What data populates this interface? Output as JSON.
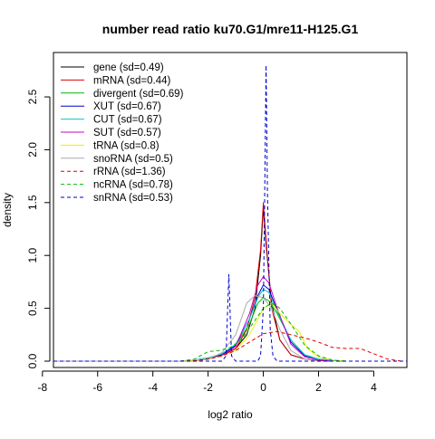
{
  "chart_data": {
    "type": "line",
    "title": "number read ratio ku70.G1/mre11-H125.G1",
    "xlabel": "log2 ratio",
    "ylabel": "density",
    "xlim": [
      -7.6,
      5.2
    ],
    "ylim": [
      -0.06,
      2.92
    ],
    "x_ticks": [
      -8,
      -6,
      -4,
      -2,
      0,
      2,
      4
    ],
    "y_ticks": [
      0.0,
      0.5,
      1.0,
      1.5,
      2.0,
      2.5
    ],
    "x_tick_labels": [
      "-8",
      "-6",
      "-4",
      "-2",
      "0",
      "2",
      "4"
    ],
    "y_tick_labels": [
      "0.0",
      "0.5",
      "1.0",
      "1.5",
      "2.0",
      "2.5"
    ],
    "grid": false,
    "legend_position": "top-left",
    "series": [
      {
        "name": "gene (sd=0.49)",
        "color": "#000000",
        "dash": "solid",
        "points": [
          [
            -7.6,
            0
          ],
          [
            -3,
            0
          ],
          [
            -2.5,
            0.01
          ],
          [
            -2,
            0.02
          ],
          [
            -1.5,
            0.05
          ],
          [
            -1,
            0.12
          ],
          [
            -0.6,
            0.25
          ],
          [
            -0.3,
            0.5
          ],
          [
            -0.1,
            1.0
          ],
          [
            0,
            1.45
          ],
          [
            0.1,
            1.1
          ],
          [
            0.3,
            0.55
          ],
          [
            0.6,
            0.2
          ],
          [
            1,
            0.06
          ],
          [
            1.5,
            0.02
          ],
          [
            2,
            0.005
          ],
          [
            2.5,
            0
          ]
        ]
      },
      {
        "name": "mRNA (sd=0.44)",
        "color": "#dd0000",
        "dash": "solid",
        "points": [
          [
            -7.6,
            0
          ],
          [
            -2.5,
            0
          ],
          [
            -2,
            0.02
          ],
          [
            -1.5,
            0.05
          ],
          [
            -1,
            0.12
          ],
          [
            -0.6,
            0.3
          ],
          [
            -0.3,
            0.6
          ],
          [
            -0.1,
            1.05
          ],
          [
            0,
            1.5
          ],
          [
            0.1,
            1.15
          ],
          [
            0.3,
            0.5
          ],
          [
            0.6,
            0.2
          ],
          [
            1,
            0.06
          ],
          [
            1.5,
            0.02
          ],
          [
            2,
            0.005
          ],
          [
            2.5,
            0
          ]
        ]
      },
      {
        "name": "divergent (sd=0.69)",
        "color": "#00bb00",
        "dash": "solid",
        "points": [
          [
            -7.6,
            0
          ],
          [
            -3,
            0
          ],
          [
            -2.5,
            0.01
          ],
          [
            -2,
            0.03
          ],
          [
            -1.5,
            0.07
          ],
          [
            -1,
            0.15
          ],
          [
            -0.5,
            0.35
          ],
          [
            -0.2,
            0.55
          ],
          [
            0,
            0.6
          ],
          [
            0.2,
            0.57
          ],
          [
            0.5,
            0.45
          ],
          [
            1,
            0.2
          ],
          [
            1.5,
            0.06
          ],
          [
            2,
            0.02
          ],
          [
            2.5,
            0.005
          ],
          [
            3,
            0
          ]
        ]
      },
      {
        "name": "XUT (sd=0.67)",
        "color": "#0000cc",
        "dash": "solid",
        "points": [
          [
            -7.6,
            0
          ],
          [
            -3,
            0
          ],
          [
            -2.5,
            0.01
          ],
          [
            -2,
            0.03
          ],
          [
            -1.5,
            0.06
          ],
          [
            -1,
            0.15
          ],
          [
            -0.5,
            0.4
          ],
          [
            -0.2,
            0.62
          ],
          [
            0,
            0.72
          ],
          [
            0.2,
            0.68
          ],
          [
            0.5,
            0.48
          ],
          [
            1,
            0.18
          ],
          [
            1.5,
            0.05
          ],
          [
            2,
            0.02
          ],
          [
            2.5,
            0.005
          ],
          [
            3,
            0
          ]
        ]
      },
      {
        "name": "CUT (sd=0.67)",
        "color": "#00cccc",
        "dash": "solid",
        "points": [
          [
            -7.6,
            0
          ],
          [
            -3,
            0
          ],
          [
            -2.5,
            0.01
          ],
          [
            -2,
            0.03
          ],
          [
            -1.5,
            0.07
          ],
          [
            -1,
            0.16
          ],
          [
            -0.5,
            0.4
          ],
          [
            -0.2,
            0.6
          ],
          [
            0,
            0.68
          ],
          [
            0.2,
            0.65
          ],
          [
            0.5,
            0.47
          ],
          [
            1,
            0.2
          ],
          [
            1.5,
            0.06
          ],
          [
            2,
            0.02
          ],
          [
            2.5,
            0.005
          ],
          [
            3,
            0
          ]
        ]
      },
      {
        "name": "SUT (sd=0.57)",
        "color": "#cc00cc",
        "dash": "solid",
        "points": [
          [
            -7.6,
            0
          ],
          [
            -3,
            0
          ],
          [
            -2.5,
            0.01
          ],
          [
            -2,
            0.02
          ],
          [
            -1.5,
            0.05
          ],
          [
            -1,
            0.14
          ],
          [
            -0.5,
            0.45
          ],
          [
            -0.2,
            0.72
          ],
          [
            0,
            0.8
          ],
          [
            0.2,
            0.74
          ],
          [
            0.5,
            0.5
          ],
          [
            1,
            0.16
          ],
          [
            1.5,
            0.04
          ],
          [
            2,
            0.01
          ],
          [
            2.5,
            0
          ]
        ]
      },
      {
        "name": "tRNA (sd=0.8)",
        "color": "#eeee00",
        "dash": "solid",
        "points": [
          [
            -7.6,
            0
          ],
          [
            -3,
            0
          ],
          [
            -2.5,
            0.01
          ],
          [
            -2,
            0.02
          ],
          [
            -1.5,
            0.05
          ],
          [
            -1,
            0.1
          ],
          [
            -0.5,
            0.25
          ],
          [
            0,
            0.5
          ],
          [
            0.3,
            0.55
          ],
          [
            0.6,
            0.45
          ],
          [
            1,
            0.35
          ],
          [
            1.3,
            0.28
          ],
          [
            1.6,
            0.12
          ],
          [
            2,
            0.04
          ],
          [
            2.5,
            0.01
          ],
          [
            3,
            0
          ]
        ]
      },
      {
        "name": "snoRNA (sd=0.5)",
        "color": "#aaaaaa",
        "dash": "solid",
        "points": [
          [
            -7.6,
            0
          ],
          [
            -2.5,
            0
          ],
          [
            -2,
            0.02
          ],
          [
            -1.5,
            0.08
          ],
          [
            -1,
            0.25
          ],
          [
            -0.6,
            0.55
          ],
          [
            -0.3,
            0.62
          ],
          [
            0,
            0.6
          ],
          [
            0.3,
            0.5
          ],
          [
            0.6,
            0.3
          ],
          [
            1,
            0.1
          ],
          [
            1.5,
            0.02
          ],
          [
            2,
            0
          ]
        ]
      },
      {
        "name": "rRNA (sd=1.36)",
        "color": "#dd0000",
        "dash": "4,3",
        "points": [
          [
            -7.6,
            0
          ],
          [
            -3,
            0
          ],
          [
            -2.5,
            0.005
          ],
          [
            -2,
            0.02
          ],
          [
            -1.5,
            0.05
          ],
          [
            -1,
            0.1
          ],
          [
            -0.5,
            0.18
          ],
          [
            0,
            0.26
          ],
          [
            0.5,
            0.28
          ],
          [
            1,
            0.25
          ],
          [
            1.5,
            0.22
          ],
          [
            2,
            0.18
          ],
          [
            2.5,
            0.13
          ],
          [
            3,
            0.12
          ],
          [
            3.5,
            0.12
          ],
          [
            4,
            0.07
          ],
          [
            4.5,
            0.02
          ],
          [
            5,
            0
          ]
        ]
      },
      {
        "name": "ncRNA (sd=0.78)",
        "color": "#00bb00",
        "dash": "4,3",
        "points": [
          [
            -7.6,
            0
          ],
          [
            -3,
            0
          ],
          [
            -2.5,
            0.02
          ],
          [
            -2,
            0.09
          ],
          [
            -1.6,
            0.1
          ],
          [
            -1.2,
            0.13
          ],
          [
            -0.8,
            0.2
          ],
          [
            -0.4,
            0.35
          ],
          [
            0,
            0.5
          ],
          [
            0.3,
            0.55
          ],
          [
            0.6,
            0.5
          ],
          [
            1,
            0.35
          ],
          [
            1.5,
            0.15
          ],
          [
            2,
            0.05
          ],
          [
            2.5,
            0.01
          ],
          [
            3,
            0
          ]
        ]
      },
      {
        "name": "snRNA (sd=0.53)",
        "color": "#0000cc",
        "dash": "4,3",
        "points": [
          [
            -7.6,
            0
          ],
          [
            -1.5,
            0
          ],
          [
            -1.35,
            0.05
          ],
          [
            -1.25,
            0.82
          ],
          [
            -1.15,
            0.05
          ],
          [
            -1,
            0
          ],
          [
            -0.2,
            0
          ],
          [
            -0.1,
            0.05
          ],
          [
            0,
            0.5
          ],
          [
            0.05,
            1.6
          ],
          [
            0.1,
            2.8
          ],
          [
            0.15,
            1.6
          ],
          [
            0.25,
            0.3
          ],
          [
            0.35,
            0.05
          ],
          [
            0.5,
            0
          ],
          [
            5.2,
            0
          ]
        ]
      }
    ]
  }
}
